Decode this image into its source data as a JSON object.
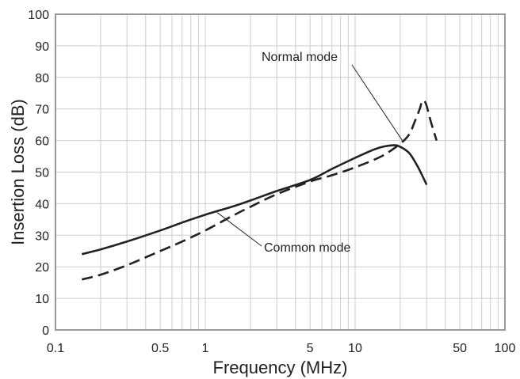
{
  "chart_data": {
    "type": "line",
    "title": "",
    "xlabel": "Frequency (MHz)",
    "ylabel": "Insertion Loss (dB)",
    "xscale": "log",
    "xlim": [
      0.1,
      100
    ],
    "ylim": [
      0,
      100
    ],
    "grid": true,
    "xtick_labels": [
      "0.1",
      "0.5",
      "1",
      "5",
      "10",
      "50",
      "100"
    ],
    "ytick_labels": [
      "0",
      "10",
      "20",
      "30",
      "40",
      "50",
      "60",
      "70",
      "80",
      "90",
      "100"
    ],
    "series": [
      {
        "name": "Common mode",
        "style": "solid",
        "color": "#222222",
        "x": [
          0.15,
          0.2,
          0.3,
          0.5,
          0.7,
          1,
          1.5,
          2,
          3,
          5,
          7,
          10,
          14,
          18,
          20,
          23,
          26,
          28,
          30
        ],
        "y": [
          24,
          25.5,
          28,
          31.5,
          34,
          36.5,
          39,
          41,
          44,
          47.5,
          51,
          54.5,
          57.5,
          58.5,
          58,
          56,
          52,
          49,
          46
        ]
      },
      {
        "name": "Normal mode",
        "style": "dashed",
        "color": "#222222",
        "x": [
          0.15,
          0.2,
          0.3,
          0.5,
          0.7,
          1,
          1.5,
          2,
          3,
          5,
          7,
          10,
          15,
          20,
          23,
          25,
          27,
          28,
          29,
          30,
          32,
          35
        ],
        "y": [
          16,
          17.5,
          20.5,
          25,
          28,
          31.5,
          36,
          39,
          43,
          47,
          49,
          51.5,
          55,
          59,
          62,
          66,
          70,
          72.5,
          72.5,
          71,
          66,
          60
        ]
      }
    ],
    "annotations": [
      {
        "text": "Normal mode",
        "points_to": "Normal mode"
      },
      {
        "text": "Common mode",
        "points_to": "Common mode"
      }
    ]
  }
}
